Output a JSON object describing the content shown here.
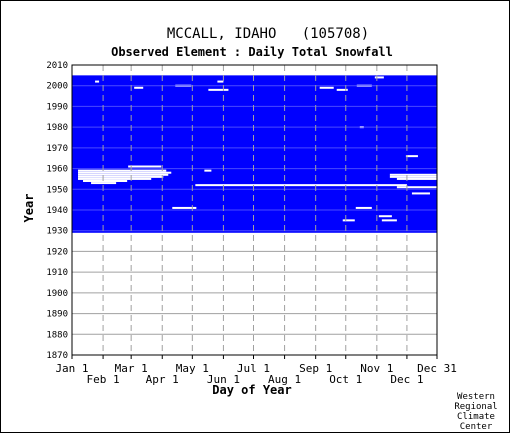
{
  "header": {
    "title": "MCCALL, IDAHO   (105708)",
    "subtitle": "Observed Element : Daily Total Snowfall"
  },
  "credit": [
    "Western",
    "Regional",
    "Climate",
    "Center"
  ],
  "chart_data": {
    "type": "heatmap",
    "title": "MCCALL, IDAHO   (105708)",
    "subtitle": "Observed Element : Daily Total Snowfall",
    "xlabel": "Day of Year",
    "ylabel": "Year",
    "xlim": [
      1,
      365
    ],
    "ylim": [
      1870,
      2010
    ],
    "x_ticks": [
      {
        "label": "Jan 1",
        "day": 1,
        "row": "upper"
      },
      {
        "label": "Feb 1",
        "day": 32,
        "row": "lower"
      },
      {
        "label": "Mar 1",
        "day": 60,
        "row": "upper"
      },
      {
        "label": "Apr 1",
        "day": 91,
        "row": "lower"
      },
      {
        "label": "May 1",
        "day": 121,
        "row": "upper"
      },
      {
        "label": "Jun 1",
        "day": 152,
        "row": "lower"
      },
      {
        "label": "Jul 1",
        "day": 182,
        "row": "upper"
      },
      {
        "label": "Aug 1",
        "day": 213,
        "row": "lower"
      },
      {
        "label": "Sep 1",
        "day": 244,
        "row": "upper"
      },
      {
        "label": "Oct 1",
        "day": 274,
        "row": "lower"
      },
      {
        "label": "Nov 1",
        "day": 305,
        "row": "upper"
      },
      {
        "label": "Dec 1",
        "day": 335,
        "row": "lower"
      },
      {
        "label": "Dec 31",
        "day": 365,
        "row": "upper"
      }
    ],
    "y_ticks": [
      2010,
      2000,
      1990,
      1980,
      1970,
      1960,
      1950,
      1940,
      1930,
      1920,
      1910,
      1900,
      1890,
      1880,
      1870
    ],
    "record_period": [
      1929,
      2005
    ],
    "fill_color": "#0000ff",
    "missing_color": "#ffffff",
    "grid": true,
    "missing_segments": [
      {
        "year": 2004,
        "start": 303,
        "end": 312
      },
      {
        "year": 2002,
        "start": 24,
        "end": 28
      },
      {
        "year": 2002,
        "start": 146,
        "end": 152
      },
      {
        "year": 2000,
        "start": 104,
        "end": 120
      },
      {
        "year": 2000,
        "start": 285,
        "end": 300
      },
      {
        "year": 1999,
        "start": 63,
        "end": 72
      },
      {
        "year": 1999,
        "start": 248,
        "end": 262
      },
      {
        "year": 1998,
        "start": 137,
        "end": 157
      },
      {
        "year": 1998,
        "start": 265,
        "end": 276
      },
      {
        "year": 1980,
        "start": 288,
        "end": 292
      },
      {
        "year": 1966,
        "start": 334,
        "end": 346
      },
      {
        "year": 1961,
        "start": 57,
        "end": 90
      },
      {
        "year": 1959,
        "start": 7,
        "end": 95
      },
      {
        "year": 1959,
        "start": 133,
        "end": 140
      },
      {
        "year": 1958,
        "start": 7,
        "end": 100
      },
      {
        "year": 1957,
        "start": 7,
        "end": 97
      },
      {
        "year": 1957,
        "start": 318,
        "end": 365
      },
      {
        "year": 1956,
        "start": 7,
        "end": 92
      },
      {
        "year": 1956,
        "start": 318,
        "end": 365
      },
      {
        "year": 1955,
        "start": 7,
        "end": 80
      },
      {
        "year": 1955,
        "start": 325,
        "end": 365
      },
      {
        "year": 1954,
        "start": 12,
        "end": 56
      },
      {
        "year": 1953,
        "start": 20,
        "end": 45
      },
      {
        "year": 1952,
        "start": 124,
        "end": 335
      },
      {
        "year": 1951,
        "start": 325,
        "end": 365
      },
      {
        "year": 1948,
        "start": 340,
        "end": 358
      },
      {
        "year": 1941,
        "start": 101,
        "end": 125
      },
      {
        "year": 1941,
        "start": 284,
        "end": 300
      },
      {
        "year": 1937,
        "start": 307,
        "end": 320
      },
      {
        "year": 1935,
        "start": 271,
        "end": 283
      },
      {
        "year": 1935,
        "start": 310,
        "end": 325
      }
    ]
  }
}
